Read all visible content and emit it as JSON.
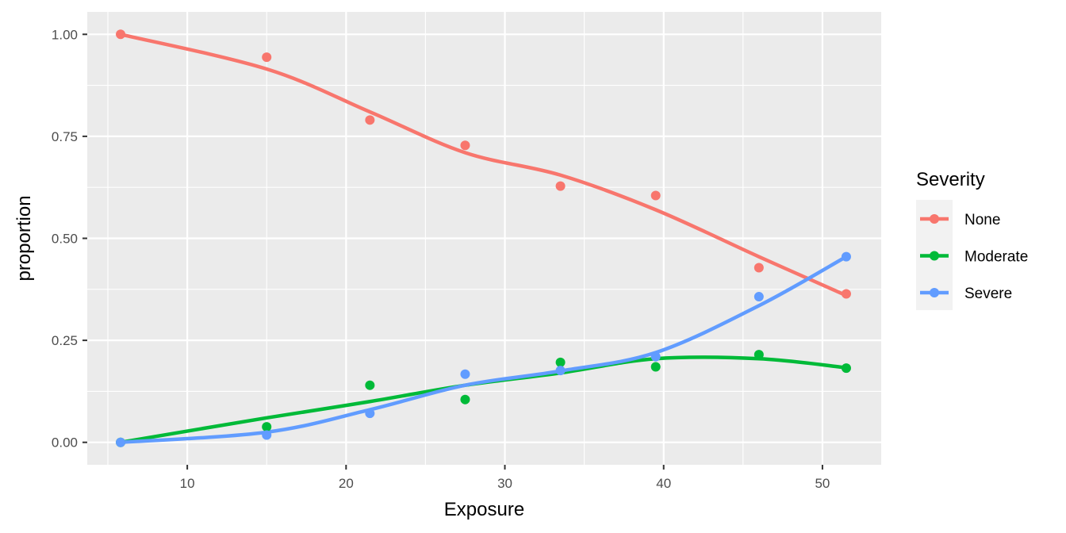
{
  "chart_data": {
    "type": "line",
    "xlabel": "Exposure",
    "ylabel": "proportion",
    "xlim": [
      3.7,
      53.7
    ],
    "ylim": [
      -0.055,
      1.055
    ],
    "x_ticks": [
      10,
      20,
      30,
      40,
      50
    ],
    "x_tick_labels": [
      "10",
      "20",
      "30",
      "40",
      "50"
    ],
    "y_ticks": [
      0,
      0.25,
      0.5,
      0.75,
      1.0
    ],
    "y_tick_labels": [
      "0.00",
      "0.25",
      "0.50",
      "0.75",
      "1.00"
    ],
    "grid": true,
    "legend": {
      "title": "Severity",
      "position": "right"
    },
    "x": [
      5.8,
      15,
      21.5,
      27.5,
      33.5,
      39.5,
      46,
      51.5
    ],
    "series": [
      {
        "name": "None",
        "color": "#F8766D",
        "points": [
          1.0,
          0.944,
          0.79,
          0.728,
          0.628,
          0.605,
          0.428,
          0.364
        ],
        "smooth": [
          1.0,
          0.915,
          0.81,
          0.71,
          0.655,
          0.57,
          0.455,
          0.36
        ]
      },
      {
        "name": "Moderate",
        "color": "#00BA38",
        "points": [
          0.0,
          0.038,
          0.14,
          0.105,
          0.196,
          0.185,
          0.215,
          0.182
        ],
        "smooth": [
          0.0,
          0.06,
          0.1,
          0.14,
          0.17,
          0.205,
          0.205,
          0.183
        ]
      },
      {
        "name": "Severe",
        "color": "#619CFF",
        "points": [
          0.0,
          0.018,
          0.071,
          0.167,
          0.176,
          0.21,
          0.357,
          0.455
        ],
        "smooth": [
          0.0,
          0.025,
          0.08,
          0.14,
          0.175,
          0.22,
          0.335,
          0.455
        ]
      }
    ]
  }
}
